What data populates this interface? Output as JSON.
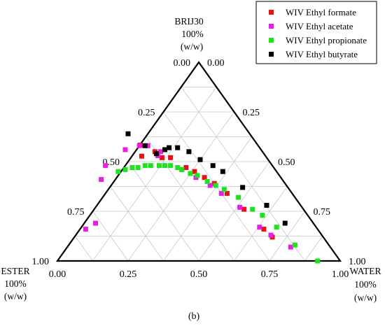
{
  "chart_data": {
    "type": "scatter",
    "subtype": "ternary",
    "vertices": {
      "top": [
        "BRIJ30",
        "100%",
        "(w/w)"
      ],
      "left": [
        "ESTER",
        "100%",
        "(w/w)"
      ],
      "right": [
        "WATER",
        "100%",
        "(w/w)"
      ]
    },
    "panel_label": "(b)",
    "ticks": [
      "0.00",
      "0.25",
      "0.50",
      "0.75",
      "1.00"
    ],
    "grid": true,
    "legend_position": "top-right",
    "series": [
      {
        "name": "WIV Ethyl formate",
        "color": "#e8101a",
        "points": [
          {
            "ester": 0.46,
            "brij": 0.58,
            "water": 0.0
          },
          {
            "ester": 0.41,
            "brij": 0.57,
            "water": 0.01
          },
          {
            "ester": 0.38,
            "brij": 0.55,
            "water": 0.07
          },
          {
            "ester": 0.37,
            "brij": 0.52,
            "water": 0.11
          },
          {
            "ester": 0.34,
            "brij": 0.52,
            "water": 0.14
          },
          {
            "ester": 0.31,
            "brij": 0.47,
            "water": 0.22
          },
          {
            "ester": 0.29,
            "brij": 0.45,
            "water": 0.26
          },
          {
            "ester": 0.27,
            "brij": 0.42,
            "water": 0.31
          },
          {
            "ester": 0.25,
            "brij": 0.39,
            "water": 0.36
          },
          {
            "ester": 0.23,
            "brij": 0.34,
            "water": 0.43
          },
          {
            "ester": 0.21,
            "brij": 0.26,
            "water": 0.53
          },
          {
            "ester": 0.19,
            "brij": 0.16,
            "water": 0.65
          },
          {
            "ester": 0.18,
            "brij": 0.12,
            "water": 0.7
          }
        ]
      },
      {
        "name": "WIV Ethyl acetate",
        "color": "#e81ee4",
        "points": [
          {
            "ester": 0.82,
            "brij": 0.16,
            "water": 0.02
          },
          {
            "ester": 0.77,
            "brij": 0.19,
            "water": 0.04
          },
          {
            "ester": 0.64,
            "brij": 0.41,
            "water": -0.05
          },
          {
            "ester": 0.59,
            "brij": 0.48,
            "water": -0.07
          },
          {
            "ester": 0.48,
            "brij": 0.56,
            "water": -0.04
          },
          {
            "ester": 0.42,
            "brij": 0.58,
            "water": 0.0
          },
          {
            "ester": 0.39,
            "brij": 0.58,
            "water": 0.03
          },
          {
            "ester": 0.38,
            "brij": 0.53,
            "water": 0.09
          },
          {
            "ester": 0.36,
            "brij": 0.55,
            "water": 0.09
          },
          {
            "ester": 0.33,
            "brij": 0.46,
            "water": 0.21
          },
          {
            "ester": 0.3,
            "brij": 0.42,
            "water": 0.28
          },
          {
            "ester": 0.27,
            "brij": 0.38,
            "water": 0.35
          },
          {
            "ester": 0.25,
            "brij": 0.34,
            "water": 0.41
          },
          {
            "ester": 0.22,
            "brij": 0.27,
            "water": 0.51
          },
          {
            "ester": 0.2,
            "brij": 0.17,
            "water": 0.63
          },
          {
            "ester": 0.18,
            "brij": 0.13,
            "water": 0.69
          },
          {
            "ester": 0.14,
            "brij": 0.07,
            "water": 0.79
          }
        ]
      },
      {
        "name": "WIV Ethyl propionate",
        "color": "#1ee21e",
        "points": [
          {
            "ester": 0.56,
            "brij": 0.45,
            "water": -0.01
          },
          {
            "ester": 0.53,
            "brij": 0.46,
            "water": 0.01
          },
          {
            "ester": 0.5,
            "brij": 0.47,
            "water": 0.03
          },
          {
            "ester": 0.48,
            "brij": 0.47,
            "water": 0.05
          },
          {
            "ester": 0.45,
            "brij": 0.48,
            "water": 0.07
          },
          {
            "ester": 0.43,
            "brij": 0.48,
            "water": 0.09
          },
          {
            "ester": 0.4,
            "brij": 0.48,
            "water": 0.12
          },
          {
            "ester": 0.38,
            "brij": 0.48,
            "water": 0.14
          },
          {
            "ester": 0.36,
            "brij": 0.48,
            "water": 0.16
          },
          {
            "ester": 0.34,
            "brij": 0.47,
            "water": 0.19
          },
          {
            "ester": 0.33,
            "brij": 0.46,
            "water": 0.21
          },
          {
            "ester": 0.31,
            "brij": 0.44,
            "water": 0.25
          },
          {
            "ester": 0.29,
            "brij": 0.43,
            "water": 0.28
          },
          {
            "ester": 0.27,
            "brij": 0.4,
            "water": 0.33
          },
          {
            "ester": 0.25,
            "brij": 0.38,
            "water": 0.37
          },
          {
            "ester": 0.23,
            "brij": 0.36,
            "water": 0.41
          },
          {
            "ester": 0.2,
            "brij": 0.32,
            "water": 0.48
          },
          {
            "ester": 0.18,
            "brij": 0.26,
            "water": 0.56
          },
          {
            "ester": 0.16,
            "brij": 0.23,
            "water": 0.61
          },
          {
            "ester": 0.14,
            "brij": 0.17,
            "water": 0.69
          },
          {
            "ester": 0.12,
            "brij": 0.08,
            "water": 0.8
          },
          {
            "ester": 0.08,
            "brij": 0.0,
            "water": 0.92
          }
        ]
      },
      {
        "name": "WIV Ethyl butyrate",
        "color": "#000000",
        "points": [
          {
            "ester": 0.43,
            "brij": 0.64,
            "water": -0.07
          },
          {
            "ester": 0.4,
            "brij": 0.58,
            "water": 0.02
          },
          {
            "ester": 0.38,
            "brij": 0.54,
            "water": 0.08
          },
          {
            "ester": 0.34,
            "brij": 0.56,
            "water": 0.1
          },
          {
            "ester": 0.32,
            "brij": 0.57,
            "water": 0.11
          },
          {
            "ester": 0.29,
            "brij": 0.57,
            "water": 0.14
          },
          {
            "ester": 0.26,
            "brij": 0.55,
            "water": 0.19
          },
          {
            "ester": 0.24,
            "brij": 0.51,
            "water": 0.25
          },
          {
            "ester": 0.21,
            "brij": 0.48,
            "water": 0.31
          },
          {
            "ester": 0.19,
            "brij": 0.45,
            "water": 0.36
          },
          {
            "ester": 0.16,
            "brij": 0.37,
            "water": 0.47
          },
          {
            "ester": 0.12,
            "brij": 0.28,
            "water": 0.6
          },
          {
            "ester": 0.1,
            "brij": 0.19,
            "water": 0.71
          }
        ]
      }
    ]
  }
}
